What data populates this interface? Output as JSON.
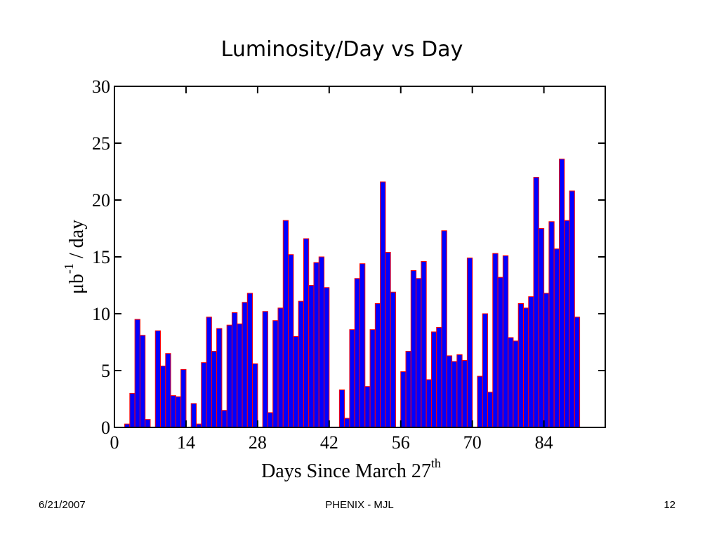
{
  "chart_data": {
    "type": "histogram",
    "title": "Luminosity/Day vs Day",
    "x_label": {
      "text": "Days Since March 27",
      "sup": "th"
    },
    "y_label": {
      "text": "μb",
      "sup": "-1",
      "rest": " / day"
    },
    "bins": [
      2,
      3,
      4,
      5,
      6,
      7,
      8,
      9,
      10,
      11,
      12,
      13,
      14,
      15,
      16,
      17,
      18,
      19,
      20,
      21,
      22,
      23,
      24,
      25,
      26,
      27,
      28,
      29,
      30,
      31,
      32,
      33,
      34,
      35,
      36,
      37,
      38,
      39,
      40,
      41,
      42,
      43,
      44,
      45,
      46,
      47,
      48,
      49,
      50,
      51,
      52,
      53,
      54,
      55,
      56,
      57,
      58,
      59,
      60,
      61,
      62,
      63,
      64,
      65,
      66,
      67,
      68,
      69,
      70,
      71,
      72,
      73,
      74,
      75,
      76,
      77,
      78,
      79,
      80,
      81,
      82,
      83,
      84,
      85,
      86,
      87,
      88,
      89,
      90,
      91
    ],
    "values": [
      0.3,
      3.0,
      9.5,
      8.1,
      0.7,
      0,
      8.5,
      5.4,
      6.5,
      2.8,
      2.7,
      5.1,
      0,
      2.1,
      0.3,
      5.7,
      9.7,
      6.7,
      8.7,
      1.5,
      9.0,
      10.1,
      9.1,
      11.0,
      11.8,
      5.6,
      0,
      10.2,
      1.3,
      9.4,
      10.5,
      18.2,
      15.2,
      8.0,
      11.1,
      16.6,
      12.5,
      14.5,
      15.0,
      12.3,
      0,
      0,
      3.3,
      0.8,
      8.6,
      13.1,
      14.4,
      3.6,
      8.6,
      10.9,
      21.6,
      15.4,
      11.9,
      0,
      4.9,
      6.7,
      13.8,
      13.1,
      14.6,
      4.2,
      8.4,
      8.8,
      17.3,
      6.3,
      5.8,
      6.4,
      5.9,
      14.9,
      0,
      4.5,
      10.0,
      3.1,
      15.3,
      13.2,
      15.1,
      7.9,
      7.6,
      10.9,
      10.5,
      11.5,
      22.0,
      17.5,
      11.8,
      18.1,
      15.7,
      23.6,
      18.2,
      20.8,
      9.7
    ],
    "color": "#0000ff",
    "edge_color": "#ff0000",
    "xlim": [
      0,
      96
    ],
    "xticks": [
      0,
      14,
      28,
      42,
      56,
      70,
      84
    ],
    "ylim": [
      0,
      30
    ],
    "yticks": [
      0,
      5,
      10,
      15,
      20,
      25,
      30
    ]
  },
  "footer": {
    "date": "6/21/2007",
    "center": "PHENIX - MJL",
    "page": "12"
  }
}
